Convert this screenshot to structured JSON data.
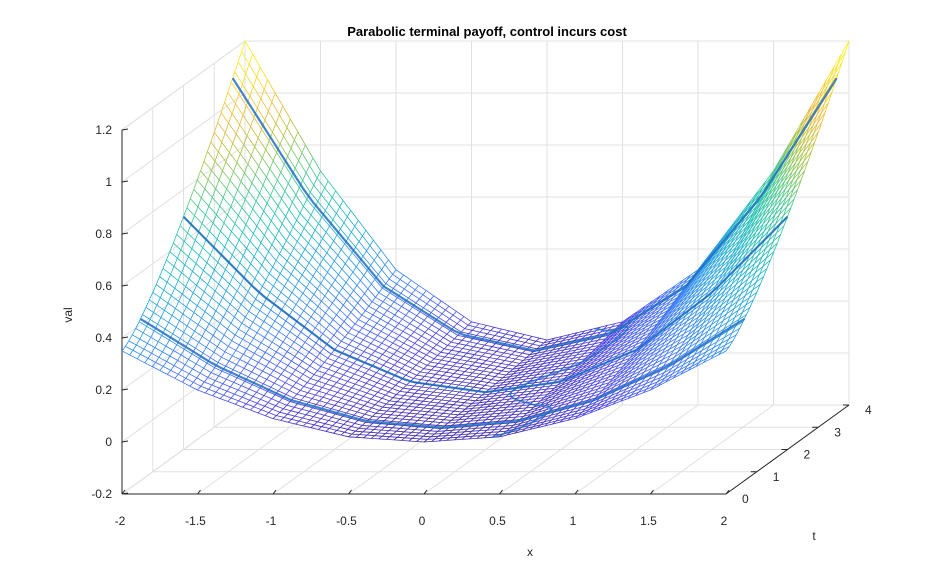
{
  "chart_data": {
    "type": "surface",
    "title": "Parabolic terminal payoff, control incurs cost",
    "xlabel": "x",
    "ylabel": "t",
    "zlabel": "val",
    "xlim": [
      -2,
      2
    ],
    "ylim": [
      0,
      4
    ],
    "zlim": [
      -0.2,
      1.2
    ],
    "x_ticks": [
      "-2",
      "-1.5",
      "-1",
      "-0.5",
      "0",
      "0.5",
      "1",
      "1.5",
      "2"
    ],
    "y_ticks": [
      "0",
      "1",
      "2",
      "3",
      "4"
    ],
    "z_ticks": [
      "-0.2",
      "0",
      "0.2",
      "0.4",
      "0.6",
      "0.8",
      "1",
      "1.2"
    ],
    "grid": true,
    "colormap": [
      "#3e26a8",
      "#4a42e4",
      "#3f6ffe",
      "#2d93ec",
      "#1fabd5",
      "#1ec0b2",
      "#43c98b",
      "#a3c444",
      "#efba37",
      "#f9dd26",
      "#f9fb15"
    ],
    "surface_slices": [
      {
        "t": 0,
        "x": [
          -2,
          -1.5,
          -1,
          -0.5,
          0,
          0.5,
          1,
          1.5,
          2
        ],
        "val": [
          0.35,
          0.2,
          0.09,
          0.02,
          0.0,
          0.02,
          0.09,
          0.2,
          0.35
        ]
      },
      {
        "t": 4,
        "x": [
          -2,
          -1.5,
          -1,
          -0.5,
          0,
          0.5,
          1,
          1.5,
          2
        ],
        "val": [
          1.2,
          0.7,
          0.32,
          0.12,
          0.05,
          0.12,
          0.32,
          0.7,
          1.2
        ]
      }
    ],
    "highlight_contours": [
      0.3,
      0.5,
      0.8
    ]
  }
}
